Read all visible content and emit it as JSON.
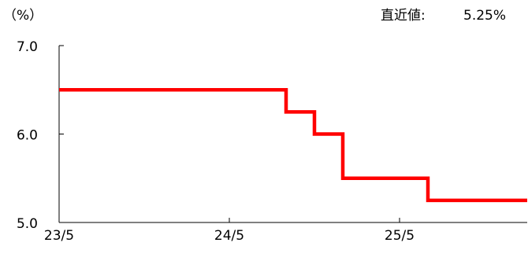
{
  "chart_data": {
    "type": "line",
    "unit_label": "（%）",
    "latest_label": "直近値:",
    "latest_value": "5.25%",
    "x_ticks": [
      "23/5",
      "24/5",
      "25/5"
    ],
    "x_range": [
      "2023-05",
      "2026-02"
    ],
    "y_ticks": [
      "7.0",
      "6.0",
      "5.0"
    ],
    "ylim": [
      5.0,
      7.0
    ],
    "grid": false,
    "legend": "none",
    "series": [
      {
        "color": "#ff0000",
        "step": true,
        "points": [
          {
            "x": "2023-05",
            "y": 6.5
          },
          {
            "x": "2024-09",
            "y": 6.5
          },
          {
            "x": "2024-09",
            "y": 6.25
          },
          {
            "x": "2024-11",
            "y": 6.25
          },
          {
            "x": "2024-11",
            "y": 6.0
          },
          {
            "x": "2025-01",
            "y": 6.0
          },
          {
            "x": "2025-01",
            "y": 5.5
          },
          {
            "x": "2025-07",
            "y": 5.5
          },
          {
            "x": "2025-07",
            "y": 5.25
          },
          {
            "x": "2026-02",
            "y": 5.25
          }
        ]
      }
    ]
  }
}
